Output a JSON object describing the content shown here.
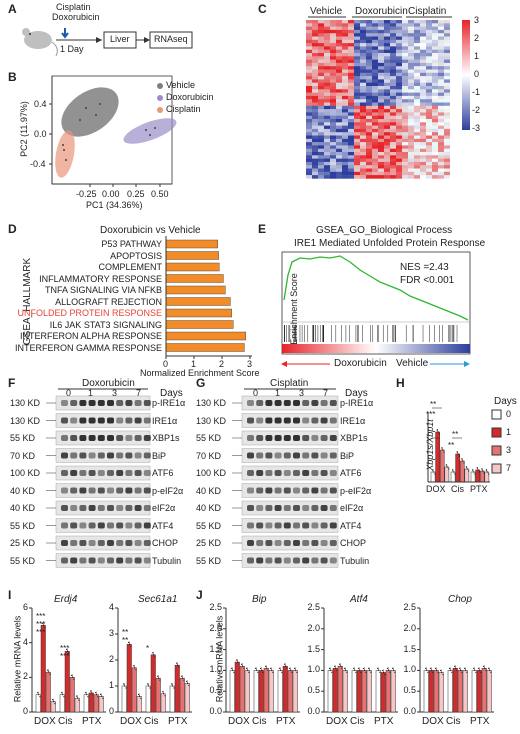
{
  "panels": {
    "A": "A",
    "B": "B",
    "C": "C",
    "D": "D",
    "E": "E",
    "F": "F",
    "G": "G",
    "H": "H",
    "I": "I",
    "J": "J"
  },
  "panelA": {
    "drug1": "Cisplatin",
    "drug2": "Doxorubicin",
    "time": "1 Day",
    "step1": "Liver",
    "step2": "RNAseq"
  },
  "panelB": {
    "legend": [
      "Vehicle",
      "Doxorubicin",
      "Cisplatin"
    ],
    "xlabel": "PC1 (34.36%)",
    "ylabel": "PC2 (11.97%)",
    "xticks": [
      "-0.25",
      "0.00",
      "0.25",
      "0.50"
    ],
    "yticks": [
      "0.4",
      "0.0",
      "-0.4"
    ]
  },
  "panelC": {
    "groups": [
      "Vehicle",
      "Doxorubicin",
      "Cisplatin"
    ],
    "scale": [
      "3",
      "2",
      "1",
      "0",
      "-1",
      "-2",
      "-3"
    ]
  },
  "panelD": {
    "title": "Doxorubicin vs Vehicle",
    "ylabel": "GSEA_HALLMARK",
    "xlabel": "Normalized Enrichment Score",
    "xticks": [
      "0",
      "1",
      "2",
      "3"
    ]
  },
  "panelE": {
    "title1": "GSEA_GO_Biological Process",
    "title2": "IRE1 Mediated Unfolded Protein Response",
    "ylabel": "Enrichment Score",
    "nes": "NES =2.43",
    "fdr": "FDR <0.001",
    "left": "Doxorubicin",
    "right": "Vehicle"
  },
  "panelF": {
    "drug": "Doxorubicin",
    "days": [
      "0",
      "1",
      "3",
      "7"
    ],
    "daysLabel": "Days"
  },
  "panelG": {
    "drug": "Cisplatin",
    "days": [
      "0",
      "1",
      "3",
      "7"
    ],
    "daysLabel": "Days"
  },
  "blots": {
    "kd": [
      "130 KD",
      "130 KD",
      "55 KD",
      "70 KD",
      "100 KD",
      "40 KD",
      "40 KD",
      "55 KD",
      "25 KD",
      "55 KD"
    ],
    "kdG": [
      "130 KD",
      "130 KD",
      "55 KD",
      "70 KD",
      "100 KD",
      "40 KD",
      "40 KD",
      "55 KD",
      "25 KD",
      "55 KD"
    ],
    "proteins": [
      "p-IRE1α",
      "IRE1α",
      "XBP1s",
      "BiP",
      "ATF6",
      "p-eIF2α",
      "eIF2α",
      "ATF4",
      "CHOP",
      "Tubulin"
    ]
  },
  "panelH": {
    "ylabel": "Xbp1s/Xbp1t",
    "groups": [
      "DOX",
      "Cis",
      "PTX"
    ],
    "legendTitle": "Days",
    "legend": [
      "0",
      "1",
      "3",
      "7"
    ],
    "stars": [
      "**",
      "***",
      "**",
      "**"
    ]
  },
  "panelI": {
    "ylabel": "Relative mRNA levels",
    "genes": [
      "Erdj4",
      "Sec61a1"
    ],
    "groups": [
      "DOX",
      "Cis",
      "PTX"
    ],
    "yticks1": [
      "0",
      "2",
      "4",
      "6"
    ],
    "yticks2": [
      "0",
      "1",
      "2",
      "3",
      "4"
    ],
    "stars": [
      "***",
      "***",
      "***",
      "***",
      "***",
      "**",
      "**",
      "*"
    ]
  },
  "panelJ": {
    "ylabel": "Relative mRNA levels",
    "genes": [
      "Bip",
      "Atf4",
      "Chop"
    ],
    "groups": [
      "DOX",
      "Cis",
      "PTX"
    ],
    "yticks": [
      "0.0",
      "0.5",
      "1.0",
      "1.5",
      "2.0",
      "2.5"
    ]
  },
  "colors": {
    "vehicle": "#7f7f7f",
    "dox": "#9b8dc9",
    "cis": "#e9967a",
    "bar": "#f28c28",
    "red": "#e8443a",
    "blue": "#2f4aa6",
    "d1": "#d62a2a",
    "d3": "#e57373",
    "d7": "#f7c6c6"
  },
  "chart_data": [
    {
      "type": "bar",
      "categories": [
        "P53 PATHWAY",
        "APOPTOSIS",
        "COMPLEMENT",
        "INFLAMMATORY RESPONSE",
        "TNFA SIGNALING VIA NFKB",
        "ALLOGRAFT REJECTION",
        "UNFOLDED PROTEIN RESPONSE",
        "IL6 JAK STAT3 SIGNALING",
        "INTERFERON ALPHA RESPONSE",
        "INTERFERON GAMMA RESPONSE"
      ],
      "values": [
        1.85,
        1.88,
        1.9,
        2.05,
        2.12,
        2.3,
        2.35,
        2.4,
        2.85,
        2.8
      ],
      "xlim": [
        0,
        3
      ],
      "highlight": "UNFOLDED PROTEIN RESPONSE"
    },
    {
      "type": "bar",
      "title": "Xbp1s/Xbp1t",
      "categories": [
        "DOX",
        "Cis",
        "PTX"
      ],
      "series": [
        {
          "name": "0",
          "values": [
            1,
            1,
            1
          ]
        },
        {
          "name": "1",
          "values": [
            5,
            2.8,
            1.2
          ]
        },
        {
          "name": "3",
          "values": [
            3.2,
            2.1,
            1.1
          ]
        },
        {
          "name": "7",
          "values": [
            1.5,
            1.3,
            1.0
          ]
        }
      ]
    },
    {
      "type": "bar",
      "title": "Erdj4",
      "categories": [
        "DOX",
        "Cis",
        "PTX"
      ],
      "series": [
        {
          "name": "0",
          "values": [
            1,
            1,
            1
          ]
        },
        {
          "name": "1",
          "values": [
            5.0,
            3.5,
            1.1
          ]
        },
        {
          "name": "3",
          "values": [
            2.3,
            2.0,
            1.0
          ]
        },
        {
          "name": "7",
          "values": [
            0.6,
            0.8,
            0.9
          ]
        }
      ],
      "ylim": [
        0,
        6
      ]
    },
    {
      "type": "bar",
      "title": "Sec61a1",
      "categories": [
        "DOX",
        "Cis",
        "PTX"
      ],
      "series": [
        {
          "name": "0",
          "values": [
            1,
            1,
            1
          ]
        },
        {
          "name": "1",
          "values": [
            2.6,
            2.2,
            1.8
          ]
        },
        {
          "name": "3",
          "values": [
            1.7,
            1.3,
            1.3
          ]
        },
        {
          "name": "7",
          "values": [
            0.6,
            0.7,
            1.1
          ]
        }
      ],
      "ylim": [
        0,
        4
      ]
    },
    {
      "type": "bar",
      "title": "Bip",
      "categories": [
        "DOX",
        "Cis",
        "PTX"
      ],
      "series": [
        {
          "name": "0",
          "values": [
            1,
            1,
            1
          ]
        },
        {
          "name": "1",
          "values": [
            1.2,
            1.0,
            1.1
          ]
        },
        {
          "name": "3",
          "values": [
            1.1,
            1.05,
            1.0
          ]
        },
        {
          "name": "7",
          "values": [
            1.0,
            1.0,
            1.0
          ]
        }
      ],
      "ylim": [
        0,
        2.5
      ]
    },
    {
      "type": "bar",
      "title": "Atf4",
      "categories": [
        "DOX",
        "Cis",
        "PTX"
      ],
      "series": [
        {
          "name": "0",
          "values": [
            1,
            1,
            1
          ]
        },
        {
          "name": "1",
          "values": [
            1.05,
            1.0,
            0.95
          ]
        },
        {
          "name": "3",
          "values": [
            1.1,
            1.0,
            1.0
          ]
        },
        {
          "name": "7",
          "values": [
            1.0,
            1.0,
            1.0
          ]
        }
      ],
      "ylim": [
        0,
        2.5
      ]
    },
    {
      "type": "bar",
      "title": "Chop",
      "categories": [
        "DOX",
        "Cis",
        "PTX"
      ],
      "series": [
        {
          "name": "0",
          "values": [
            1,
            1,
            1
          ]
        },
        {
          "name": "1",
          "values": [
            1.0,
            1.05,
            1.0
          ]
        },
        {
          "name": "3",
          "values": [
            1.0,
            1.0,
            1.05
          ]
        },
        {
          "name": "7",
          "values": [
            0.95,
            1.0,
            1.0
          ]
        }
      ],
      "ylim": [
        0,
        2.5
      ]
    }
  ]
}
